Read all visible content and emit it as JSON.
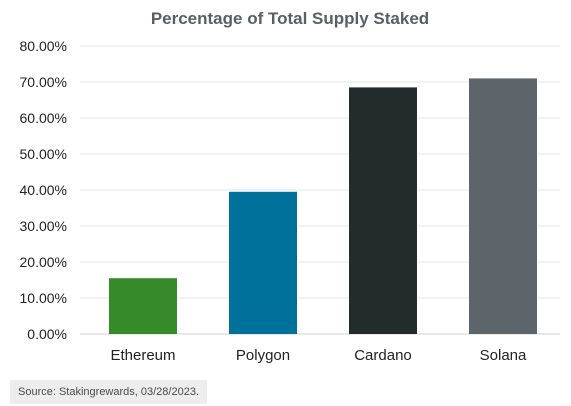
{
  "chart_data": {
    "type": "bar",
    "title": "Percentage of Total Supply Staked",
    "categories": [
      "Ethereum",
      "Polygon",
      "Cardano",
      "Solana"
    ],
    "values": [
      15.5,
      39.5,
      68.5,
      71.0
    ],
    "bar_colors": [
      "#368a2a",
      "#00719b",
      "#232b2b",
      "#5d646a"
    ],
    "ylim": [
      0,
      80
    ],
    "yticks": [
      0,
      10,
      20,
      30,
      40,
      50,
      60,
      70,
      80
    ],
    "ytick_labels": [
      "0.00%",
      "10.00%",
      "20.00%",
      "30.00%",
      "40.00%",
      "50.00%",
      "60.00%",
      "70.00%",
      "80.00%"
    ],
    "xlabel": "",
    "ylabel": "",
    "grid": true,
    "gridline_color": "#e6e6e6",
    "title_color": "#5a5f66"
  },
  "source": {
    "text": "Source: Stakingrewards, 03/28/2023."
  }
}
